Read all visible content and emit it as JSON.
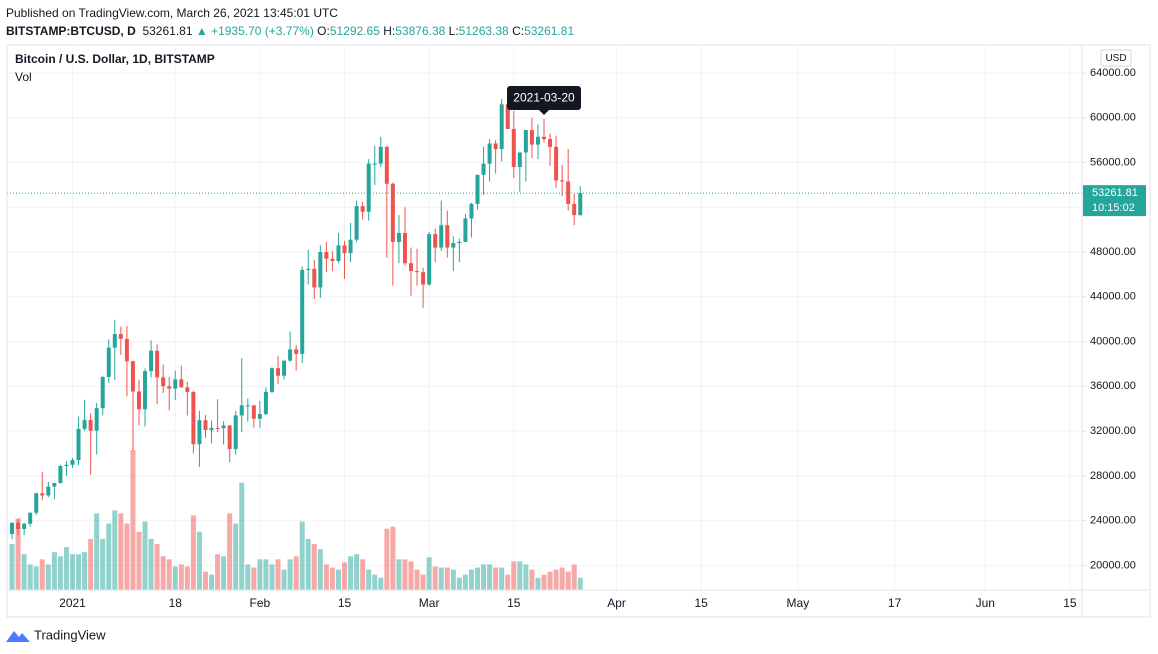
{
  "header": {
    "published": "Published on TradingView.com, March 26, 2021 13:45:01 UTC",
    "symbol": "BITSTAMP:BTCUSD, D",
    "last": "53261.81",
    "change": "▲ +1935.70 (+3.77%)",
    "ohlc": [
      {
        "label": "O:",
        "value": "51292.65"
      },
      {
        "label": "H:",
        "value": "53876.38"
      },
      {
        "label": "L:",
        "value": "51263.38"
      },
      {
        "label": "C:",
        "value": "53261.81"
      }
    ]
  },
  "chart_data": {
    "type": "candlestick",
    "title": "Bitcoin / U.S. Dollar, 1D, BITSTAMP",
    "volume_label": "Vol",
    "currency": "USD",
    "up_color": "#26a69a",
    "down_color": "#ef5350",
    "grid": true,
    "x": [
      "2020-12-22",
      "2020-12-23",
      "2020-12-24",
      "2020-12-25",
      "2020-12-26",
      "2020-12-27",
      "2020-12-28",
      "2020-12-29",
      "2020-12-30",
      "2020-12-31",
      "2021-01-01",
      "2021-01-02",
      "2021-01-03",
      "2021-01-04",
      "2021-01-05",
      "2021-01-06",
      "2021-01-07",
      "2021-01-08",
      "2021-01-09",
      "2021-01-10",
      "2021-01-11",
      "2021-01-12",
      "2021-01-13",
      "2021-01-14",
      "2021-01-15",
      "2021-01-16",
      "2021-01-17",
      "2021-01-18",
      "2021-01-19",
      "2021-01-20",
      "2021-01-21",
      "2021-01-22",
      "2021-01-23",
      "2021-01-24",
      "2021-01-25",
      "2021-01-26",
      "2021-01-27",
      "2021-01-28",
      "2021-01-29",
      "2021-01-30",
      "2021-01-31",
      "2021-02-01",
      "2021-02-02",
      "2021-02-03",
      "2021-02-04",
      "2021-02-05",
      "2021-02-06",
      "2021-02-07",
      "2021-02-08",
      "2021-02-09",
      "2021-02-10",
      "2021-02-11",
      "2021-02-12",
      "2021-02-13",
      "2021-02-14",
      "2021-02-15",
      "2021-02-16",
      "2021-02-17",
      "2021-02-18",
      "2021-02-19",
      "2021-02-20",
      "2021-02-21",
      "2021-02-22",
      "2021-02-23",
      "2021-02-24",
      "2021-02-25",
      "2021-02-26",
      "2021-02-27",
      "2021-02-28",
      "2021-03-01",
      "2021-03-02",
      "2021-03-03",
      "2021-03-04",
      "2021-03-05",
      "2021-03-06",
      "2021-03-07",
      "2021-03-08",
      "2021-03-09",
      "2021-03-10",
      "2021-03-11",
      "2021-03-12",
      "2021-03-13",
      "2021-03-14",
      "2021-03-15",
      "2021-03-16",
      "2021-03-17",
      "2021-03-18",
      "2021-03-19",
      "2021-03-20",
      "2021-03-21",
      "2021-03-22",
      "2021-03-23",
      "2021-03-24",
      "2021-03-25",
      "2021-03-26"
    ],
    "open": [
      22800,
      23820,
      23250,
      23720,
      24700,
      26440,
      26250,
      27040,
      27360,
      28880,
      28990,
      29410,
      32200,
      33000,
      32030,
      34050,
      36840,
      39460,
      40670,
      40240,
      38240,
      35540,
      33950,
      37360,
      39180,
      36800,
      36010,
      35800,
      36620,
      35900,
      35500,
      30830,
      32970,
      32090,
      32280,
      32260,
      32500,
      30400,
      33400,
      34300,
      34300,
      33100,
      33520,
      35500,
      37620,
      36950,
      38300,
      39300,
      38900,
      46400,
      46500,
      44840,
      48000,
      47400,
      47200,
      48600,
      47900,
      49100,
      52100,
      51600,
      55900,
      55900,
      57400,
      54100,
      48900,
      49700,
      47000,
      46300,
      46200,
      45100,
      49600,
      48400,
      50400,
      48400,
      48800,
      48900,
      51000,
      52300,
      54900,
      55900,
      57700,
      57200,
      61200,
      59000,
      55600,
      56900,
      58900,
      57600,
      58300,
      58100,
      57400,
      54400,
      54300,
      52300,
      51292.65
    ],
    "high": [
      23800,
      24100,
      23800,
      24750,
      26500,
      28350,
      27450,
      27350,
      28990,
      29300,
      29600,
      33300,
      34800,
      33600,
      34500,
      36900,
      40200,
      41950,
      41350,
      41400,
      38300,
      36600,
      37600,
      40100,
      39750,
      37950,
      36850,
      37400,
      37850,
      36400,
      35600,
      33800,
      33450,
      32950,
      34850,
      32900,
      32550,
      33800,
      38500,
      34900,
      34300,
      34700,
      35900,
      37700,
      38700,
      38300,
      40900,
      39700,
      46700,
      48200,
      47300,
      48600,
      48900,
      48100,
      49700,
      49000,
      50600,
      52600,
      52500,
      56300,
      57500,
      58300,
      57500,
      54200,
      51300,
      52000,
      48400,
      48300,
      46600,
      49800,
      50100,
      52600,
      51700,
      49400,
      49200,
      51400,
      52400,
      54900,
      57400,
      58100,
      58000,
      61700,
      61600,
      60600,
      56900,
      58900,
      60000,
      59400,
      59900,
      58600,
      58400,
      55800,
      57200,
      53200,
      53876.38
    ],
    "low": [
      22350,
      22700,
      22700,
      23450,
      24500,
      25800,
      26100,
      25900,
      27320,
      28000,
      28700,
      28950,
      32000,
      28100,
      29900,
      33400,
      36300,
      36550,
      38800,
      35100,
      30300,
      32500,
      32400,
      36800,
      34400,
      35400,
      33850,
      34800,
      35900,
      33400,
      30000,
      28800,
      31400,
      30900,
      31900,
      30800,
      29200,
      29900,
      31900,
      32850,
      32300,
      32300,
      33450,
      35400,
      36200,
      36600,
      38200,
      37400,
      38100,
      45100,
      43800,
      43900,
      46200,
      46300,
      47000,
      45600,
      47100,
      48900,
      50900,
      50800,
      54000,
      55600,
      47500,
      45000,
      47000,
      46800,
      44100,
      45000,
      43000,
      45000,
      47100,
      48100,
      47500,
      46300,
      47100,
      48900,
      49300,
      51800,
      53100,
      54300,
      55000,
      56100,
      59000,
      54600,
      53400,
      54300,
      56400,
      56300,
      57800,
      55700,
      53700,
      53000,
      51700,
      50400,
      51263.38
    ],
    "close": [
      23820,
      23250,
      23720,
      24700,
      26440,
      26250,
      27040,
      27360,
      28880,
      28990,
      29410,
      32200,
      33000,
      32030,
      34050,
      36840,
      39460,
      40670,
      40240,
      38240,
      35540,
      33950,
      37360,
      39180,
      36800,
      36010,
      35800,
      36620,
      35900,
      35500,
      30830,
      32970,
      32090,
      32280,
      32260,
      32500,
      30400,
      33400,
      34300,
      34300,
      33100,
      33520,
      35500,
      37620,
      36950,
      38300,
      39300,
      38900,
      46400,
      46500,
      44840,
      48000,
      47400,
      47200,
      48600,
      47900,
      49100,
      52100,
      51600,
      55900,
      55900,
      57400,
      54100,
      48900,
      49700,
      47000,
      46300,
      46200,
      45100,
      49600,
      48400,
      50400,
      48400,
      48800,
      48900,
      51000,
      52300,
      54900,
      55900,
      57700,
      57200,
      61200,
      59000,
      55600,
      56900,
      58900,
      57600,
      58300,
      58100,
      57400,
      54400,
      54300,
      52300,
      51300,
      53261.81
    ],
    "volume": [
      13500,
      21000,
      10500,
      7500,
      6900,
      9000,
      7500,
      11100,
      9900,
      12600,
      10500,
      10500,
      11100,
      15000,
      22500,
      15000,
      19500,
      23400,
      22500,
      19500,
      41100,
      17100,
      20100,
      15000,
      13500,
      9900,
      9000,
      6900,
      7500,
      6900,
      21900,
      17100,
      5400,
      4500,
      10500,
      9900,
      22500,
      19500,
      31500,
      7500,
      6600,
      9000,
      9000,
      7500,
      9000,
      6000,
      9000,
      9900,
      20100,
      15000,
      13500,
      12000,
      7500,
      6600,
      6000,
      8100,
      9900,
      10500,
      9000,
      6000,
      4500,
      3600,
      18000,
      18600,
      9000,
      9000,
      8400,
      6000,
      4500,
      9600,
      6900,
      6600,
      6600,
      6000,
      3600,
      4500,
      6000,
      6600,
      7500,
      7500,
      6600,
      6600,
      4500,
      8400,
      8400,
      7500,
      6000,
      3600,
      4500,
      5400,
      6000,
      6600,
      5400,
      7500,
      3600
    ],
    "xlim": [
      "2020-12-21",
      "2021-06-17"
    ],
    "xticks": [
      {
        "value": "2021-01-01",
        "label": "2021"
      },
      {
        "value": "2021-01-18",
        "label": "18"
      },
      {
        "value": "2021-02-01",
        "label": "Feb"
      },
      {
        "value": "2021-02-15",
        "label": "15"
      },
      {
        "value": "2021-03-01",
        "label": "Mar"
      },
      {
        "value": "2021-03-15",
        "label": "15"
      },
      {
        "value": "2021-04-01",
        "label": "Apr"
      },
      {
        "value": "2021-04-15",
        "label": "15"
      },
      {
        "value": "2021-05-01",
        "label": "May"
      },
      {
        "value": "2021-05-17",
        "label": "17"
      },
      {
        "value": "2021-06-01",
        "label": "Jun"
      },
      {
        "value": "2021-06-15",
        "label": "15"
      }
    ],
    "ylim": [
      17800,
      66500
    ],
    "yticks": [
      {
        "value": 20000,
        "label": "20000.00"
      },
      {
        "value": 24000,
        "label": "24000.00"
      },
      {
        "value": 28000,
        "label": "28000.00"
      },
      {
        "value": 32000,
        "label": "32000.00"
      },
      {
        "value": 36000,
        "label": "36000.00"
      },
      {
        "value": 40000,
        "label": "40000.00"
      },
      {
        "value": 44000,
        "label": "44000.00"
      },
      {
        "value": 48000,
        "label": "48000.00"
      },
      {
        "value": 52000,
        "label": "52000.00"
      },
      {
        "value": 56000,
        "label": "56000.00"
      },
      {
        "value": 60000,
        "label": "60000.00"
      },
      {
        "value": 64000,
        "label": "64000.00"
      }
    ],
    "vlim": [
      0,
      160000
    ],
    "last_price": 53261.81,
    "countdown": "10:15:02",
    "crosshair_date": "2021-03-20"
  },
  "footer": {
    "brand": "TradingView"
  }
}
